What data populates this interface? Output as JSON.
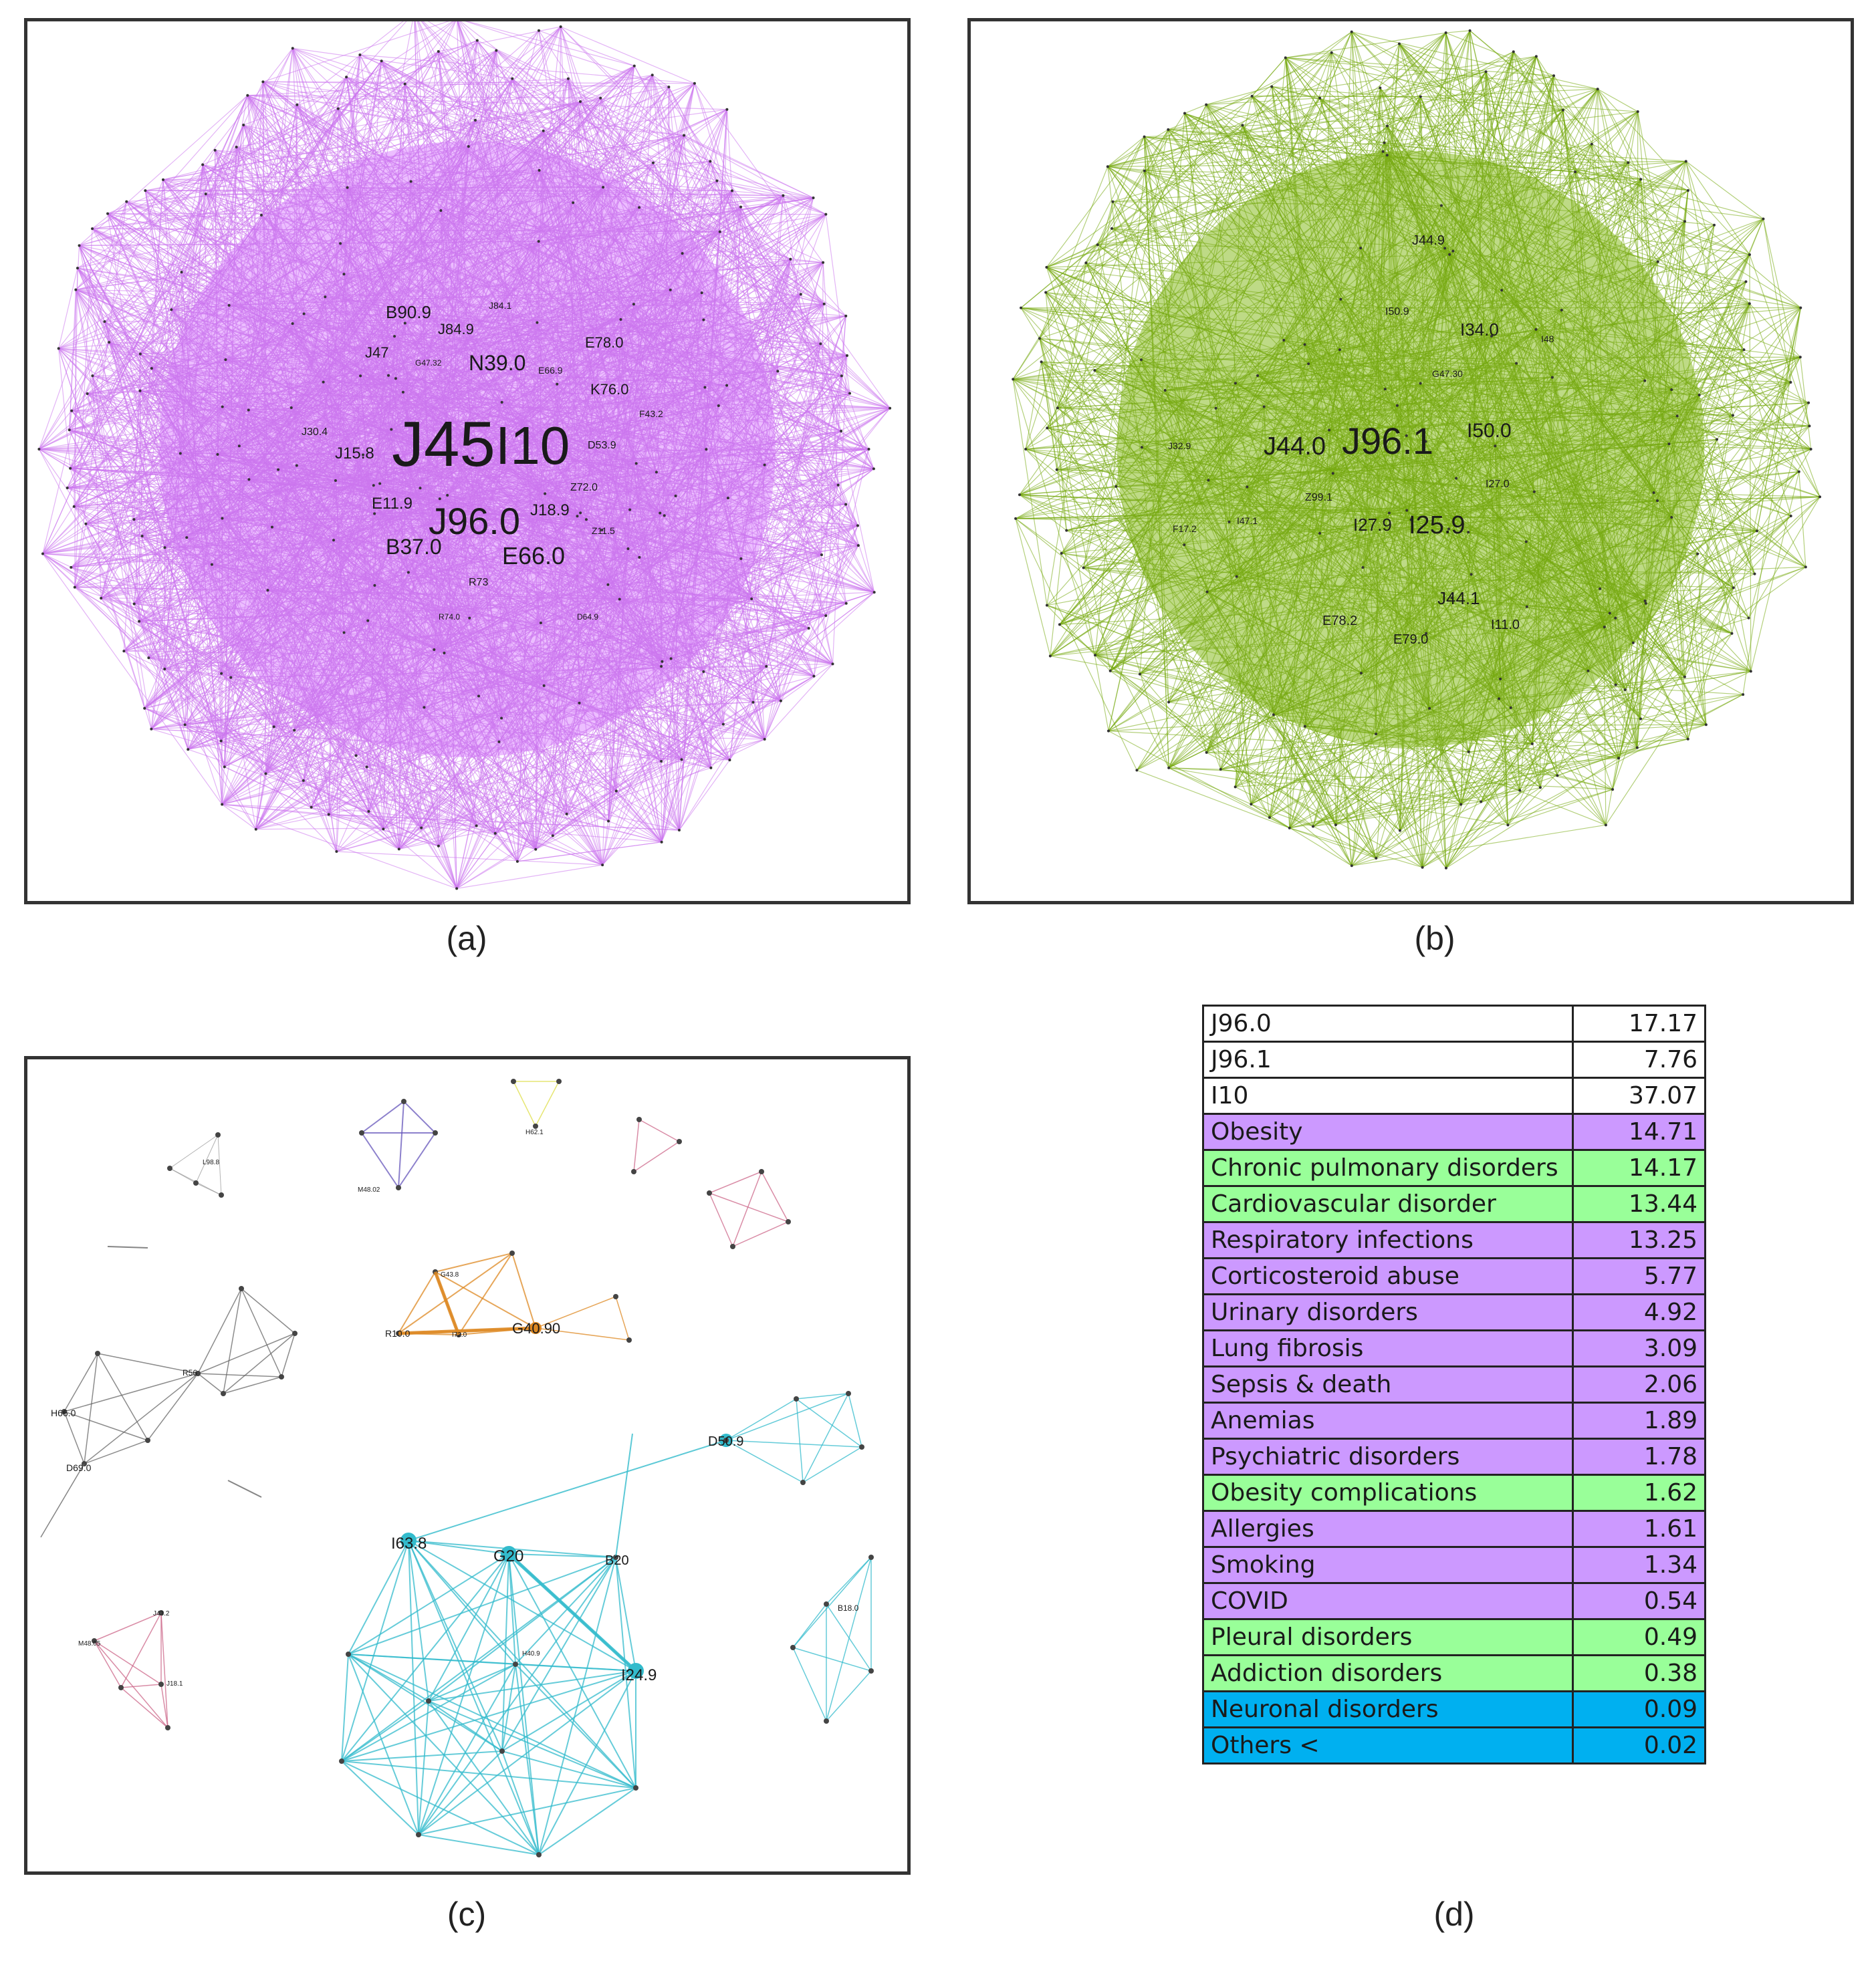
{
  "captions": {
    "a": "(a)",
    "b": "(b)",
    "c": "(c)",
    "d": "(d)"
  },
  "colors": {
    "panel_a_edges": "#cc77ee",
    "panel_a_fill": "#dd88ff",
    "panel_b_edges": "#77aa11",
    "panel_b_fill": "#88bb22",
    "cluster_cyan": "#33bbcc",
    "cluster_orange": "#dd8822",
    "cluster_purple": "#6655bb",
    "cluster_gray": "#666666",
    "cluster_pink": "#cc6688",
    "cluster_yellow": "#dddd44",
    "table_purple": "#cc99ff",
    "table_green": "#99ff99",
    "table_blue": "#00b0f0"
  },
  "panel_a": {
    "labels": {
      "j45": "J45",
      "i10": "I10",
      "j960": "J96.0",
      "e660": "E66.0",
      "b370": "B37.0",
      "n390": "N39.0",
      "b909": "B90.9",
      "j849": "J84.9",
      "j47": "J47",
      "e780": "E78.0",
      "k760": "K76.0",
      "j158": "J15.8",
      "e119": "E11.9",
      "j189": "J18.9",
      "j304": "J30.4",
      "d539": "D53.9",
      "z720": "Z72.0",
      "r73": "R73",
      "z115": "Z11.5",
      "f432": "F43.2",
      "j841": "J84.1",
      "e669": "E66.9",
      "g4732": "G47.32",
      "r740": "R74.0",
      "d649": "D64.9"
    }
  },
  "panel_b": {
    "labels": {
      "j961": "J96.1",
      "j440": "J44.0",
      "i259": "I25.9",
      "i500": "I50.0",
      "i340": "I34.0",
      "i279": "I27.9",
      "j441": "J44.1",
      "j449": "J44.9",
      "e790": "E79.0",
      "e782": "E78.2",
      "i110": "I11.0",
      "i509": "I50.9",
      "g4730": "G47.30",
      "z991": "Z99.1",
      "i270": "I27.0",
      "j329": "J32.9",
      "f172": "F17.2",
      "i471": "I47.1",
      "i48": "I48"
    }
  },
  "panel_c": {
    "labels": {
      "g20": "G20",
      "i638": "I63.8",
      "b20": "B20",
      "i249": "I24.9",
      "d509": "D50.9",
      "g4090": "G40.90",
      "r100": "R10.0",
      "h621": "H62.1",
      "m4802": "M48.02",
      "l988": "L98.8",
      "h660": "H66.0",
      "d690": "D69.0",
      "b180": "B18.0",
      "j432": "J43.2",
      "m4805": "M48.05",
      "j181": "J18.1",
      "r56": "R56",
      "g438": "G43.8",
      "i720": "I72.0",
      "h409": "H40.9"
    }
  },
  "panel_d": {
    "rows": [
      {
        "label": "J96.0",
        "value": "17.17",
        "color": "white"
      },
      {
        "label": "J96.1",
        "value": "7.76",
        "color": "white"
      },
      {
        "label": "I10",
        "value": "37.07",
        "color": "white"
      },
      {
        "label": "Obesity",
        "value": "14.71",
        "color": "purple"
      },
      {
        "label": "Chronic pulmonary disorders",
        "value": "14.17",
        "color": "green"
      },
      {
        "label": "Cardiovascular disorder",
        "value": "13.44",
        "color": "green"
      },
      {
        "label": "Respiratory infections",
        "value": "13.25",
        "color": "purple"
      },
      {
        "label": "Corticosteroid abuse",
        "value": "5.77",
        "color": "purple"
      },
      {
        "label": "Urinary disorders",
        "value": "4.92",
        "color": "purple"
      },
      {
        "label": "Lung fibrosis",
        "value": "3.09",
        "color": "purple"
      },
      {
        "label": "Sepsis & death",
        "value": "2.06",
        "color": "purple"
      },
      {
        "label": "Anemias",
        "value": "1.89",
        "color": "purple"
      },
      {
        "label": "Psychiatric disorders",
        "value": "1.78",
        "color": "purple"
      },
      {
        "label": "Obesity complications",
        "value": "1.62",
        "color": "green"
      },
      {
        "label": "Allergies",
        "value": "1.61",
        "color": "purple"
      },
      {
        "label": "Smoking",
        "value": "1.34",
        "color": "purple"
      },
      {
        "label": "COVID",
        "value": "0.54",
        "color": "purple"
      },
      {
        "label": "Pleural disorders",
        "value": "0.49",
        "color": "green"
      },
      {
        "label": "Addiction disorders",
        "value": "0.38",
        "color": "green"
      },
      {
        "label": "Neuronal disorders",
        "value": "0.09",
        "color": "blue"
      },
      {
        "label": "Others <",
        "value": "0.02",
        "color": "blue"
      }
    ]
  }
}
